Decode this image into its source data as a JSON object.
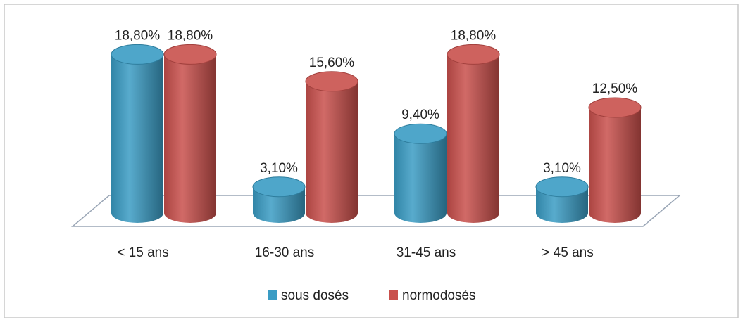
{
  "chart_data": {
    "type": "bar3d",
    "categories": [
      "< 15 ans",
      "16-30 ans",
      "31-45 ans",
      "> 45 ans"
    ],
    "series": [
      {
        "name": "sous dosés",
        "color": "#3a9cc4",
        "values": [
          18.8,
          3.1,
          9.4,
          3.1
        ],
        "value_labels": [
          "18,80%",
          "3,10%",
          "9,40%",
          "3,10%"
        ]
      },
      {
        "name": "normodosés",
        "color": "#c9504c",
        "values": [
          18.8,
          15.6,
          18.8,
          12.5
        ],
        "value_labels": [
          "18,80%",
          "15,60%",
          "18,80%",
          "12,50%"
        ]
      }
    ],
    "legend": "bottom"
  }
}
